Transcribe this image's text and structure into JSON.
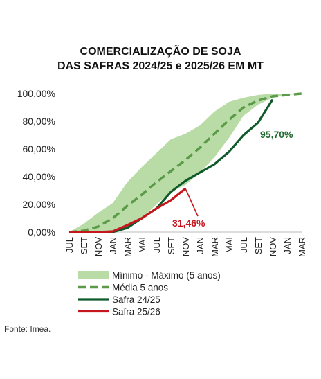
{
  "title_line1": "COMERCIALIZAÇÃO DE SOJA",
  "title_line2": "DAS SAFRAS 2024/25 e 2025/26 EM MT",
  "source": "Fonte: Imea.",
  "colors": {
    "band": "#b9dca6",
    "media": "#5a9a48",
    "safra_2425": "#0f5a2a",
    "safra_2526": "#c4161c",
    "label_2425": "#1f6b2d",
    "label_2526": "#c4161c"
  },
  "chart_data": {
    "type": "line",
    "categories": [
      "JUL",
      "SET",
      "NOV",
      "JAN",
      "MAR",
      "MAI",
      "JUL",
      "SET",
      "NOV",
      "JAN",
      "MAR",
      "MAI",
      "JUL",
      "SET",
      "NOV",
      "JAN",
      "MAR"
    ],
    "ylim": [
      0,
      100
    ],
    "yticks": [
      "0,00%",
      "20,00%",
      "40,00%",
      "60,00%",
      "80,00%",
      "100,00%"
    ],
    "grid": false,
    "legend_position": "bottom",
    "series": [
      {
        "key": "band",
        "name": "Mínimo - Máximo (5 anos)",
        "type": "band",
        "x": [
          0,
          1,
          2,
          3,
          4,
          5,
          6,
          7,
          8,
          9,
          10,
          11,
          12,
          13,
          14,
          15,
          16
        ],
        "lower": [
          0,
          0,
          0,
          0,
          2,
          10,
          20,
          29,
          34,
          43,
          54,
          68,
          84,
          92,
          97,
          99,
          100
        ],
        "upper": [
          0,
          6,
          14,
          21,
          36,
          47,
          57,
          67,
          71,
          77,
          87,
          94,
          97,
          99,
          100,
          100,
          100
        ]
      },
      {
        "key": "media",
        "name": "Média 5 anos",
        "type": "dashed",
        "x": [
          0,
          1,
          2,
          3,
          4,
          5,
          6,
          7,
          8,
          9,
          10,
          11,
          12,
          13,
          14,
          15,
          16
        ],
        "y": [
          0,
          1,
          4,
          10,
          19,
          27,
          36,
          44,
          52,
          61,
          71,
          81,
          90,
          95,
          98,
          99,
          100
        ]
      },
      {
        "key": "s2425",
        "name": "Safra 24/25",
        "type": "line",
        "x": [
          0,
          1,
          2,
          3,
          4,
          5,
          6,
          7,
          8,
          9,
          10,
          11,
          12,
          13,
          14
        ],
        "y": [
          0,
          0,
          0,
          0,
          3,
          10,
          17,
          29,
          37,
          43,
          49,
          58,
          70,
          79,
          95.7
        ]
      },
      {
        "key": "s2526",
        "name": "Safra 25/26",
        "type": "line",
        "x": [
          0,
          1,
          2,
          3,
          4,
          5,
          6,
          7,
          8
        ],
        "y": [
          0,
          0,
          0,
          0.5,
          5,
          10,
          17,
          23,
          31.46
        ]
      }
    ],
    "annotations": [
      {
        "text": "95,70%",
        "series": "s2425",
        "x": 14,
        "y": 95.7
      },
      {
        "text": "31,46%",
        "series": "s2526",
        "x": 8,
        "y": 31.46
      }
    ]
  }
}
